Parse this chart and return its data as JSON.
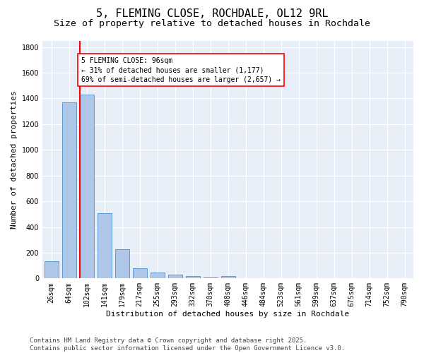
{
  "title": "5, FLEMING CLOSE, ROCHDALE, OL12 9RL",
  "subtitle": "Size of property relative to detached houses in Rochdale",
  "xlabel": "Distribution of detached houses by size in Rochdale",
  "ylabel": "Number of detached properties",
  "categories": [
    "26sqm",
    "64sqm",
    "102sqm",
    "141sqm",
    "179sqm",
    "217sqm",
    "255sqm",
    "293sqm",
    "332sqm",
    "370sqm",
    "408sqm",
    "446sqm",
    "484sqm",
    "523sqm",
    "561sqm",
    "599sqm",
    "637sqm",
    "675sqm",
    "714sqm",
    "752sqm",
    "790sqm"
  ],
  "values": [
    135,
    1370,
    1430,
    505,
    225,
    80,
    48,
    28,
    18,
    5,
    20,
    0,
    0,
    0,
    0,
    0,
    0,
    0,
    0,
    0,
    0
  ],
  "bar_color": "#aec6e8",
  "bar_edge_color": "#5b9bd5",
  "vline_color": "red",
  "vline_pos": 1.6,
  "annotation_text": "5 FLEMING CLOSE: 96sqm\n← 31% of detached houses are smaller (1,177)\n69% of semi-detached houses are larger (2,657) →",
  "annotation_box_color": "white",
  "annotation_box_edge": "red",
  "ylim": [
    0,
    1850
  ],
  "yticks": [
    0,
    200,
    400,
    600,
    800,
    1000,
    1200,
    1400,
    1600,
    1800
  ],
  "footer": "Contains HM Land Registry data © Crown copyright and database right 2025.\nContains public sector information licensed under the Open Government Licence v3.0.",
  "bg_color": "#e8eef8",
  "grid_color": "white",
  "title_fontsize": 11,
  "subtitle_fontsize": 9.5,
  "axis_label_fontsize": 8,
  "tick_fontsize": 7,
  "annotation_fontsize": 7,
  "footer_fontsize": 6.5
}
